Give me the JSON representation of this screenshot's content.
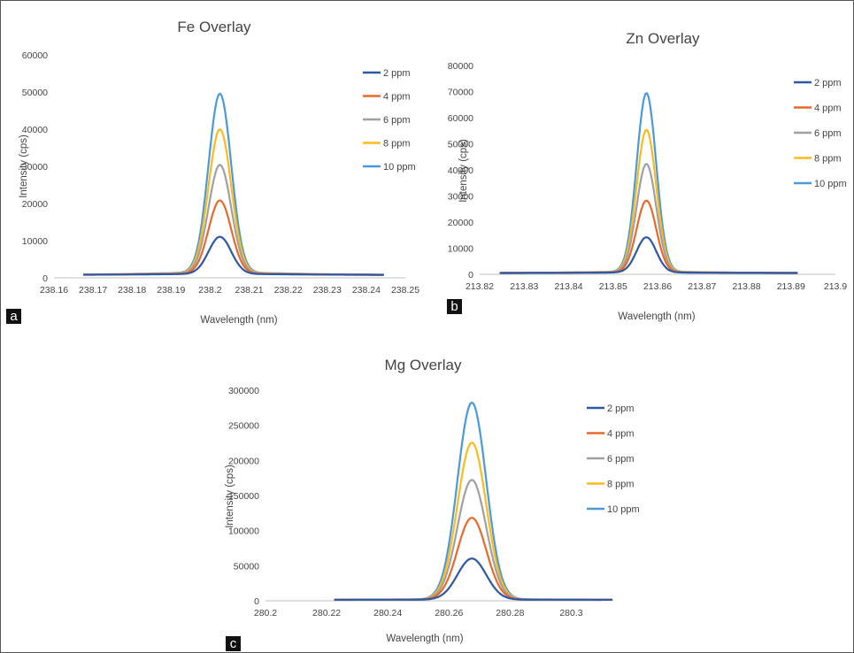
{
  "figure": {
    "panel_labels": [
      "a",
      "b",
      "c"
    ],
    "series_colors": [
      "#2F58A4",
      "#E8692A",
      "#A0A0A0",
      "#FDBB1B",
      "#4A9ADB"
    ]
  },
  "chart_data": [
    {
      "type": "line",
      "title": "Fe Overlay",
      "xlabel": "Wavelength (nm)",
      "ylabel": "Intensity (cps)",
      "xlim": [
        238.16,
        238.25
      ],
      "ylim": [
        0,
        60000
      ],
      "x_ticks": [
        "238.16",
        "238.17",
        "238.18",
        "238.19",
        "238.2",
        "238.21",
        "238.22",
        "238.23",
        "238.24",
        "238.25"
      ],
      "y_ticks": [
        "0",
        "10000",
        "20000",
        "30000",
        "40000",
        "50000",
        "60000"
      ],
      "x_start": 238.1675,
      "x_end": 238.2445,
      "peak_x": 238.2025,
      "peak_width": 0.0029,
      "baseline": 800,
      "baseline_bump": 600,
      "grid": false,
      "legend": "right",
      "series": [
        {
          "name": "2 ppm",
          "peak": 10800
        },
        {
          "name": "4 ppm",
          "peak": 20500
        },
        {
          "name": "6 ppm",
          "peak": 30000
        },
        {
          "name": "8 ppm",
          "peak": 39500
        },
        {
          "name": "10 ppm",
          "peak": 49000
        }
      ]
    },
    {
      "type": "line",
      "title": "Zn Overlay",
      "xlabel": "Wavelength (nm)",
      "ylabel": "Intensity (cps)",
      "xlim": [
        213.82,
        213.9
      ],
      "ylim": [
        0,
        80000
      ],
      "x_ticks": [
        "213.82",
        "213.83",
        "213.84",
        "213.85",
        "213.86",
        "213.87",
        "213.88",
        "213.89",
        "213.9"
      ],
      "y_ticks": [
        "0",
        "10000",
        "20000",
        "30000",
        "40000",
        "50000",
        "60000",
        "70000",
        "80000"
      ],
      "x_start": 213.8245,
      "x_end": 213.8915,
      "peak_x": 213.8575,
      "peak_width": 0.0022,
      "baseline": 500,
      "baseline_bump": 500,
      "grid": false,
      "legend": "right",
      "series": [
        {
          "name": "2 ppm",
          "peak": 14000
        },
        {
          "name": "4 ppm",
          "peak": 28000
        },
        {
          "name": "6 ppm",
          "peak": 42000
        },
        {
          "name": "8 ppm",
          "peak": 55000
        },
        {
          "name": "10 ppm",
          "peak": 69000
        }
      ]
    },
    {
      "type": "line",
      "title": "Mg Overlay",
      "xlabel": "Wavelength (nm)",
      "ylabel": "Intensity (cps)",
      "xlim": [
        280.2,
        280.31
      ],
      "ylim": [
        0,
        300000
      ],
      "x_ticks": [
        "280.2",
        "280.22",
        "280.24",
        "280.26",
        "280.28",
        "280.3"
      ],
      "y_ticks": [
        "0",
        "50000",
        "100000",
        "150000",
        "200000",
        "250000",
        "300000"
      ],
      "x_start": 280.2225,
      "x_end": 280.3135,
      "peak_x": 280.2675,
      "peak_width": 0.0047,
      "baseline": 1500,
      "baseline_bump": 500,
      "grid": false,
      "legend": "right",
      "series": [
        {
          "name": "2 ppm",
          "peak": 60000
        },
        {
          "name": "4 ppm",
          "peak": 118000
        },
        {
          "name": "6 ppm",
          "peak": 172000
        },
        {
          "name": "8 ppm",
          "peak": 225000
        },
        {
          "name": "10 ppm",
          "peak": 282000
        }
      ]
    }
  ]
}
